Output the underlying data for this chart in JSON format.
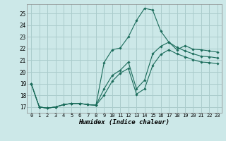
{
  "xlabel": "Humidex (Indice chaleur)",
  "bg_color": "#cce8e8",
  "grid_color": "#aacccc",
  "line_color": "#1a6b5a",
  "xlim": [
    -0.5,
    23.5
  ],
  "ylim": [
    16.5,
    25.8
  ],
  "yticks": [
    17,
    18,
    19,
    20,
    21,
    22,
    23,
    24,
    25
  ],
  "xticks": [
    0,
    1,
    2,
    3,
    4,
    5,
    6,
    7,
    8,
    9,
    10,
    11,
    12,
    13,
    14,
    15,
    16,
    17,
    18,
    19,
    20,
    21,
    22,
    23
  ],
  "series": [
    [
      19.0,
      17.0,
      16.9,
      17.0,
      17.2,
      17.3,
      17.3,
      17.2,
      17.15,
      20.8,
      21.9,
      22.05,
      23.0,
      24.4,
      25.45,
      25.3,
      23.5,
      22.55,
      21.9,
      22.25,
      21.95,
      21.9,
      21.8,
      21.7
    ],
    [
      19.0,
      17.0,
      16.9,
      17.0,
      17.2,
      17.3,
      17.3,
      17.2,
      17.15,
      18.55,
      19.7,
      20.15,
      20.85,
      18.55,
      19.3,
      21.55,
      22.2,
      22.55,
      22.1,
      21.8,
      21.55,
      21.35,
      21.3,
      21.2
    ],
    [
      19.0,
      17.0,
      16.9,
      17.0,
      17.2,
      17.3,
      17.3,
      17.2,
      17.15,
      18.0,
      19.2,
      19.9,
      20.3,
      18.1,
      18.55,
      20.55,
      21.5,
      21.9,
      21.55,
      21.3,
      21.05,
      20.85,
      20.8,
      20.7
    ]
  ]
}
